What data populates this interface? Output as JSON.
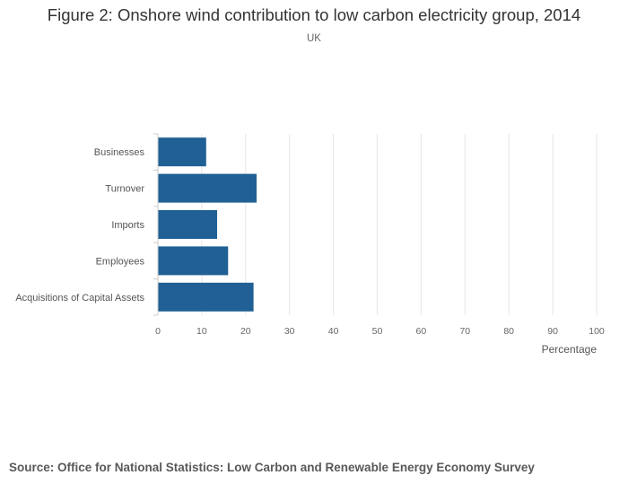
{
  "chart_data": {
    "type": "bar",
    "orientation": "horizontal",
    "title": "Figure 2: Onshore wind contribution to low carbon electricity group, 2014",
    "subtitle": "UK",
    "categories": [
      "Businesses",
      "Turnover",
      "Imports",
      "Employees",
      "Acquisitions of Capital Assets"
    ],
    "values": [
      11,
      22.5,
      13.5,
      16,
      21.8
    ],
    "xlabel": "Percentage",
    "ylabel": "",
    "xlim": [
      0,
      100
    ],
    "xticks": [
      "0",
      "10",
      "20",
      "30",
      "40",
      "50",
      "60",
      "70",
      "80",
      "90",
      "100"
    ],
    "grid": true,
    "bar_color": "#206095",
    "grid_color": "#e6e6e6",
    "axis_color": "#cccccc"
  },
  "footer": {
    "source": "Source: Office for National Statistics: Low Carbon and Renewable Energy Economy Survey"
  }
}
